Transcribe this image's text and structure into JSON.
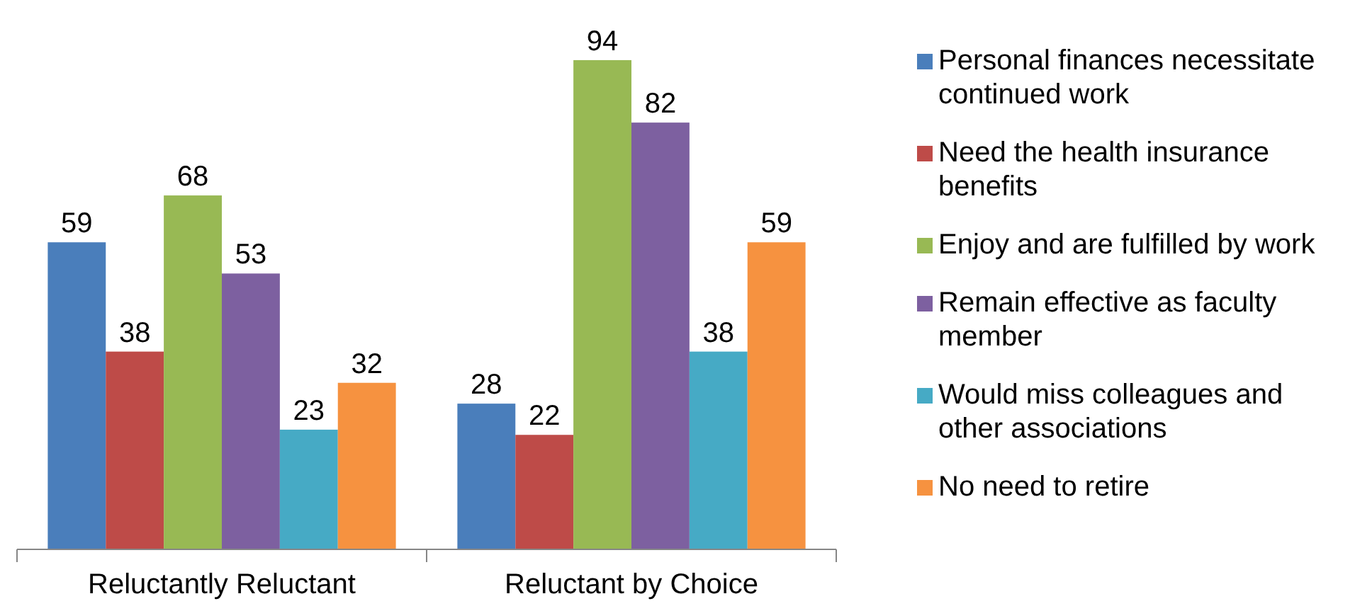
{
  "chart_data": {
    "type": "bar",
    "categories": [
      "Reluctantly Reluctant",
      "Reluctant by Choice"
    ],
    "series": [
      {
        "name": "Personal finances necessitate continued work",
        "color": "#4a7ebb",
        "values": [
          59,
          28
        ]
      },
      {
        "name": "Need the health insurance benefits",
        "color": "#be4b48",
        "values": [
          38,
          22
        ]
      },
      {
        "name": "Enjoy and are fulfilled by work",
        "color": "#98b954",
        "values": [
          68,
          94
        ]
      },
      {
        "name": "Remain effective as faculty member",
        "color": "#7d60a0",
        "values": [
          53,
          82
        ]
      },
      {
        "name": "Would miss colleagues and other associations",
        "color": "#46aac5",
        "values": [
          23,
          38
        ]
      },
      {
        "name": "No need to retire",
        "color": "#f69240",
        "values": [
          32,
          59
        ]
      }
    ],
    "data_labels": true,
    "legend": "right"
  }
}
